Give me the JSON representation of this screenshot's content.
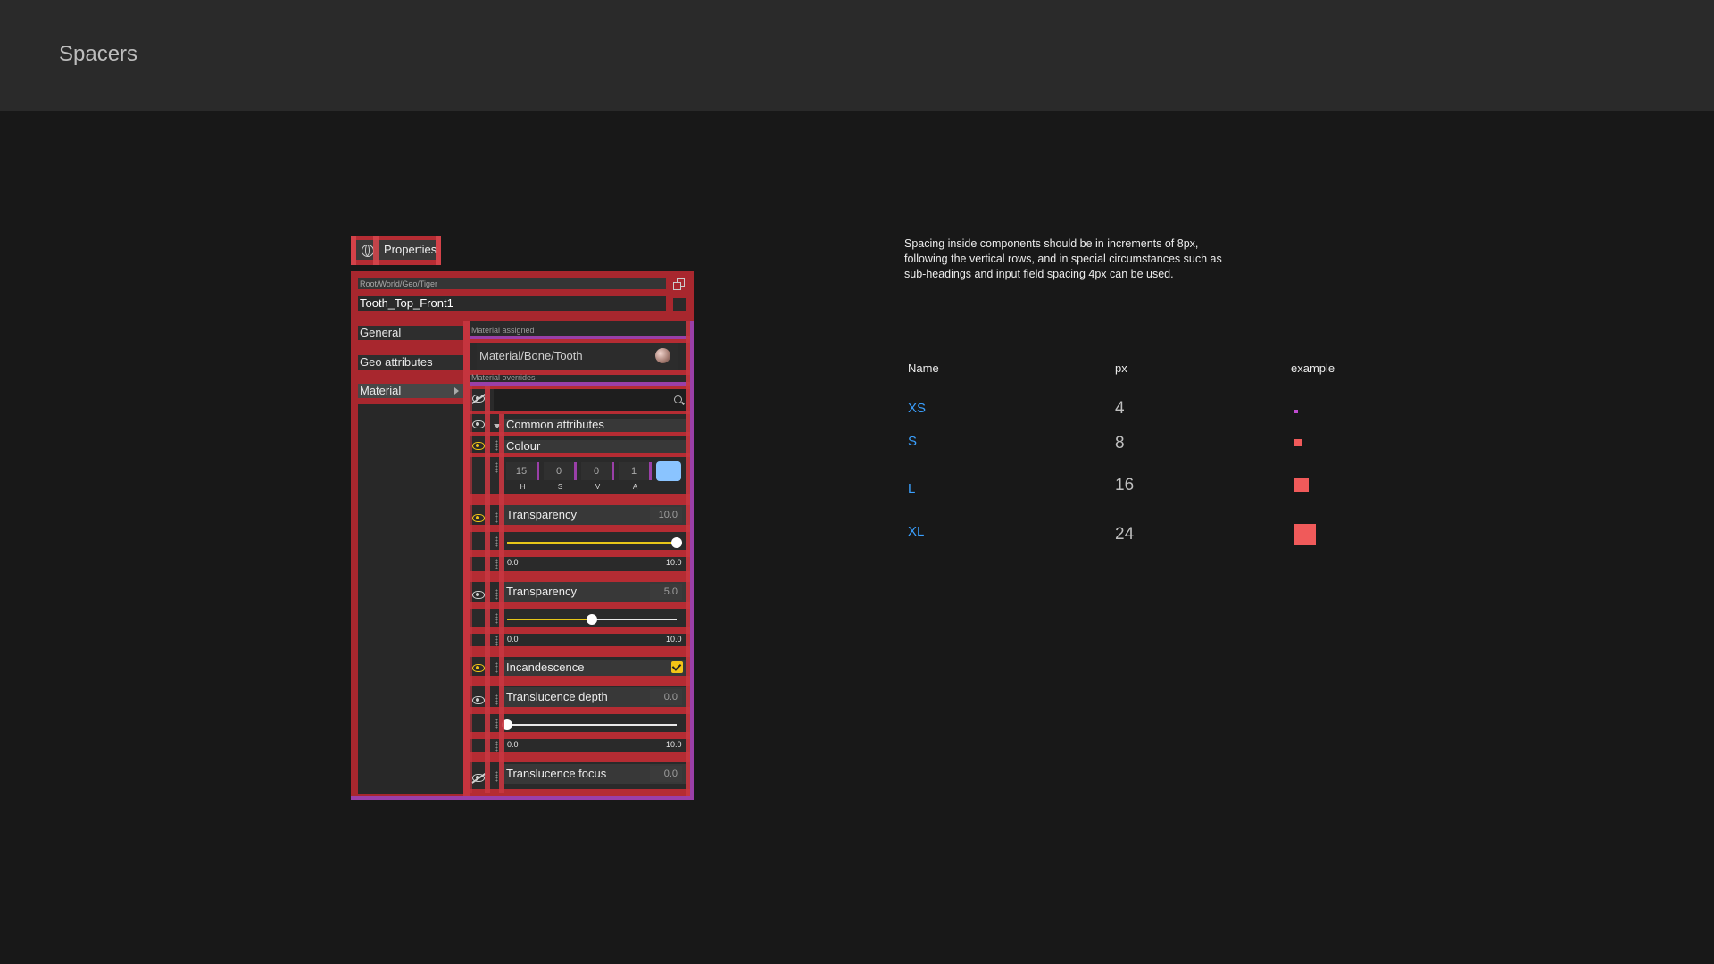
{
  "page": {
    "title": "Spacers"
  },
  "properties": {
    "tab_label": "Properties",
    "path": "Root/World/Geo/Tiger",
    "object_name": "Tooth_Top_Front1",
    "nav": [
      {
        "label": "General"
      },
      {
        "label": "Geo attributes"
      },
      {
        "label": "Material"
      }
    ],
    "material_assigned_label": "Material assigned",
    "material_path": "Material/Bone/Tooth",
    "material_overrides_label": "Material overrides",
    "section_common": "Common attributes",
    "colour": {
      "label": "Colour",
      "values": [
        "15",
        "0",
        "0",
        "1"
      ],
      "letters": [
        "H",
        "S",
        "V",
        "A"
      ],
      "swatch": "#8ac4ff"
    },
    "transparency_1": {
      "label": "Transparency",
      "value": "10.0",
      "level": 1.0,
      "min": "0.0",
      "max": "10.0"
    },
    "transparency_2": {
      "label": "Transparency",
      "value": "5.0",
      "level": 0.5,
      "min": "0.0",
      "max": "10.0"
    },
    "incandescence": {
      "label": "Incandescence",
      "checked": true
    },
    "translucence_depth": {
      "label": "Translucence depth",
      "value": "0.0",
      "level": 0.0,
      "min": "0.0",
      "max": "10.0"
    },
    "translucence_focus": {
      "label": "Translucence focus",
      "value": "0.0"
    }
  },
  "description": "Spacing inside components should be in increments of 8px, following the vertical rows, and in special circumstances such as sub-headings and input field spacing 4px can be used.",
  "table": {
    "headers": {
      "name": "Name",
      "px": "px",
      "example": "example"
    },
    "rows": [
      {
        "name": "XS",
        "px": "4",
        "color": "#c04ad0"
      },
      {
        "name": "S",
        "px": "8",
        "color": "#f05a5a"
      },
      {
        "name": "L",
        "px": "16",
        "color": "#f05a5a"
      },
      {
        "name": "XL",
        "px": "24",
        "color": "#f05a5a"
      }
    ]
  },
  "colors": {
    "guide_red": "#b52c33",
    "guide_purple": "#9a3fa8",
    "link_blue": "#3aa0ff",
    "eye_on": "#f3c416"
  }
}
